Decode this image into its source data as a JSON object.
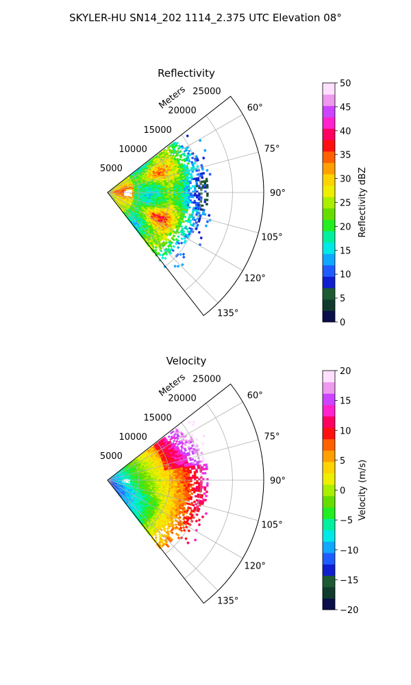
{
  "figure": {
    "suptitle": "SKYLER-HU  SN14_202  1114_2.375 UTC Elevation 08°"
  },
  "chart_data": [
    {
      "type": "heatmap",
      "projection": "polar-sector",
      "title": "Reflectivity",
      "radial_axis_label": "Meters",
      "radial_ticks": [
        5000,
        10000,
        15000,
        20000,
        25000
      ],
      "radial_tick_labels": [
        "5000",
        "10000",
        "15000",
        "20000",
        "25000"
      ],
      "r_range": [
        0,
        25000
      ],
      "theta_ticks_deg": [
        60,
        75,
        90,
        105,
        120,
        135
      ],
      "theta_tick_labels": [
        "60°",
        "75°",
        "90°",
        "105°",
        "120°",
        "135°"
      ],
      "theta_range_deg": [
        52,
        142
      ],
      "grid": true,
      "colorbar": {
        "label": "Reflectivity dBZ",
        "ticks": [
          0,
          5,
          10,
          15,
          20,
          25,
          30,
          35,
          40,
          45,
          50
        ],
        "tick_labels": [
          "0",
          "5",
          "10",
          "15",
          "20",
          "25",
          "30",
          "35",
          "40",
          "45",
          "50"
        ],
        "range": [
          0,
          50
        ],
        "colormap": [
          "#0a0e4a",
          "#103b2c",
          "#1d5a33",
          "#0f1fd0",
          "#1f5cff",
          "#10a8ff",
          "#00e8e8",
          "#00f0a0",
          "#22ee22",
          "#66dd00",
          "#aaee00",
          "#eeee00",
          "#ffd400",
          "#ffa000",
          "#ff6000",
          "#ff1010",
          "#ff0060",
          "#ff22cc",
          "#cc44ff",
          "#ee99ee",
          "#ffe0ff"
        ]
      },
      "field_summary": {
        "max_range_m": 16000,
        "features": [
          {
            "theta_deg": 68,
            "r_m": 8000,
            "value": 35
          },
          {
            "theta_deg": 115,
            "r_m": 8500,
            "value": 37
          },
          {
            "theta_deg": 90,
            "r_m": 12000,
            "value": 18
          },
          {
            "theta_deg": 90,
            "r_m": 14500,
            "value": 15
          }
        ]
      }
    },
    {
      "type": "heatmap",
      "projection": "polar-sector",
      "title": "Velocity",
      "radial_axis_label": "Meters",
      "radial_ticks": [
        5000,
        10000,
        15000,
        20000,
        25000
      ],
      "radial_tick_labels": [
        "5000",
        "10000",
        "15000",
        "20000",
        "25000"
      ],
      "r_range": [
        0,
        25000
      ],
      "theta_ticks_deg": [
        60,
        75,
        90,
        105,
        120,
        135
      ],
      "theta_tick_labels": [
        "60°",
        "75°",
        "90°",
        "105°",
        "120°",
        "135°"
      ],
      "theta_range_deg": [
        52,
        142
      ],
      "grid": true,
      "colorbar": {
        "label": "Velocity (m/s)",
        "ticks": [
          -20,
          -15,
          -10,
          -5,
          0,
          5,
          10,
          15,
          20
        ],
        "tick_labels": [
          "−20",
          "−15",
          "−10",
          "−5",
          "0",
          "5",
          "10",
          "15",
          "20"
        ],
        "range": [
          -20,
          20
        ],
        "colormap": [
          "#0a0e4a",
          "#103b2c",
          "#1d5a33",
          "#0f1fd0",
          "#1f5cff",
          "#10a8ff",
          "#00e8e8",
          "#00f0a0",
          "#22ee22",
          "#66dd00",
          "#aaee00",
          "#eeee00",
          "#ffd400",
          "#ffa000",
          "#ff6000",
          "#ff1010",
          "#ff0060",
          "#ff22cc",
          "#cc44ff",
          "#ee99ee",
          "#ffe0ff"
        ]
      },
      "field_summary": {
        "max_range_m": 16000,
        "features": [
          {
            "theta_deg": 90,
            "r_m": 2000,
            "value": -9
          },
          {
            "theta_deg": 120,
            "r_m": 6000,
            "value": -4
          },
          {
            "theta_deg": 90,
            "r_m": 8000,
            "value": 1
          },
          {
            "theta_deg": 65,
            "r_m": 12000,
            "value": 12
          },
          {
            "theta_deg": 100,
            "r_m": 13000,
            "value": 8
          }
        ]
      }
    }
  ]
}
